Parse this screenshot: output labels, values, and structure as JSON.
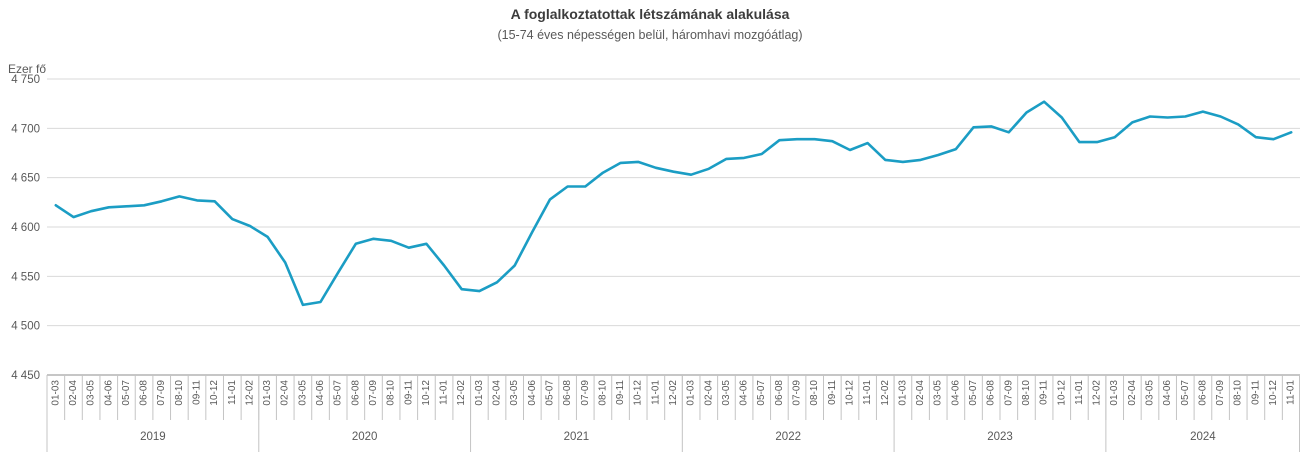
{
  "chart_data": {
    "type": "line",
    "title": "A foglalkoztatottak létszámának alakulása",
    "subtitle": "(15-74 éves népességen belül, háromhavi mozgóátlag)",
    "ylabel": "Ezer fő",
    "xlabel": "",
    "ylim": [
      4450,
      4750
    ],
    "grid": true,
    "legend_position": "none",
    "ytick_values": [
      4450,
      4500,
      4550,
      4600,
      4650,
      4700,
      4750
    ],
    "ytick_labels": [
      "4 450",
      "4 500",
      "4 550",
      "4 600",
      "4 650",
      "4 700",
      "4 750"
    ],
    "years": [
      {
        "label": "2019",
        "months": 12
      },
      {
        "label": "2020",
        "months": 12
      },
      {
        "label": "2021",
        "months": 12
      },
      {
        "label": "2022",
        "months": 12
      },
      {
        "label": "2023",
        "months": 12
      },
      {
        "label": "2024",
        "months": 11
      }
    ],
    "categories": [
      "01-03",
      "02-04",
      "03-05",
      "04-06",
      "05-07",
      "06-08",
      "07-09",
      "08-10",
      "09-11",
      "10-12",
      "11-01",
      "12-02",
      "01-03",
      "02-04",
      "03-05",
      "04-06",
      "05-07",
      "06-08",
      "07-09",
      "08-10",
      "09-11",
      "10-12",
      "11-01",
      "12-02",
      "01-03",
      "02-04",
      "03-05",
      "04-06",
      "05-07",
      "06-08",
      "07-09",
      "08-10",
      "09-11",
      "10-12",
      "11-01",
      "12-02",
      "01-03",
      "02-04",
      "03-05",
      "04-06",
      "05-07",
      "06-08",
      "07-09",
      "08-10",
      "09-11",
      "10-12",
      "11-01",
      "12-02",
      "01-03",
      "02-04",
      "03-05",
      "04-06",
      "05-07",
      "06-08",
      "07-09",
      "08-10",
      "09-11",
      "10-12",
      "11-01",
      "12-02",
      "01-03",
      "02-04",
      "03-05",
      "04-06",
      "05-07",
      "06-08",
      "07-09",
      "08-10",
      "09-11",
      "10-12",
      "11-01"
    ],
    "values": [
      4622,
      4610,
      4616,
      4620,
      4621,
      4622,
      4626,
      4631,
      4627,
      4626,
      4608,
      4601,
      4590,
      4564,
      4521,
      4524,
      4554,
      4583,
      4588,
      4586,
      4579,
      4583,
      4561,
      4537,
      4535,
      4544,
      4561,
      4595,
      4628,
      4641,
      4641,
      4655,
      4665,
      4666,
      4660,
      4656,
      4653,
      4659,
      4669,
      4670,
      4674,
      4688,
      4689,
      4689,
      4687,
      4678,
      4685,
      4668,
      4666,
      4668,
      4673,
      4679,
      4701,
      4702,
      4696,
      4716,
      4727,
      4711,
      4686,
      4686,
      4691,
      4706,
      4712,
      4711,
      4712,
      4717,
      4712,
      4704,
      4691,
      4689,
      4696
    ]
  },
  "colors": {
    "line": "#1B9DC4",
    "grid": "#D9D9D9",
    "axis": "#8C8C8C",
    "separator": "#C4C4C4",
    "text": "#595959",
    "title": "#3C3C3C"
  }
}
